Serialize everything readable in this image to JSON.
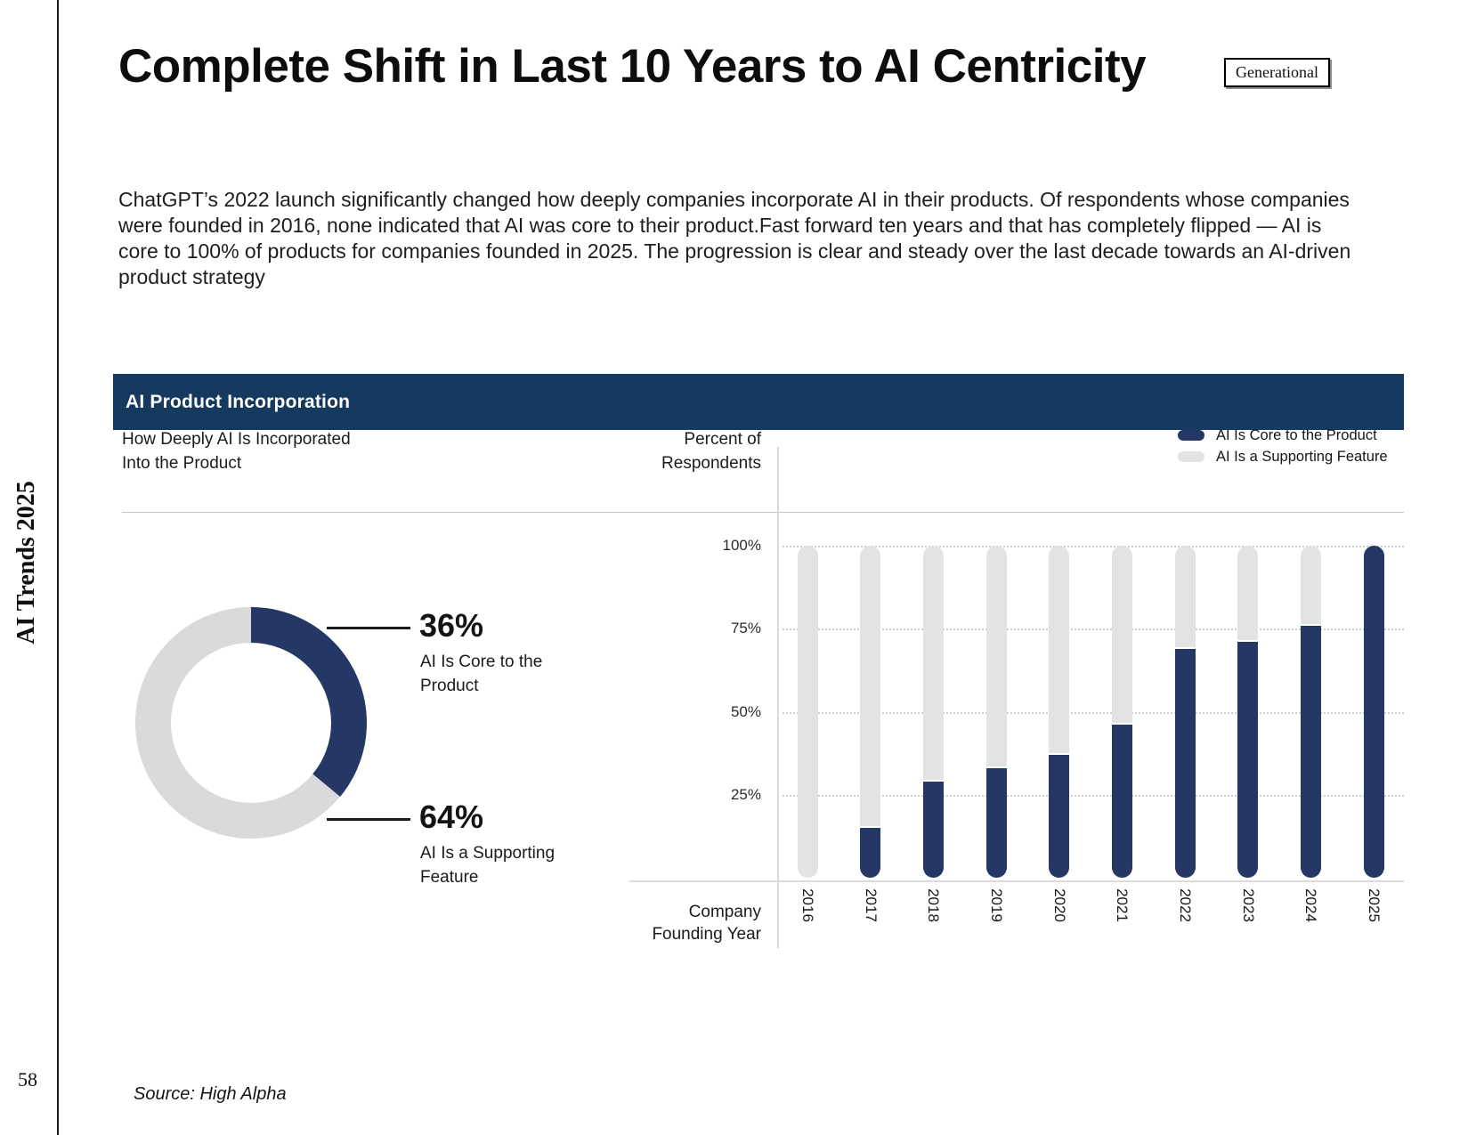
{
  "page": {
    "sidebar_title": "AI Trends 2025",
    "page_number": "58",
    "tag_label": "Generational",
    "title": "Complete Shift in Last 10 Years to AI Centricity",
    "body": "ChatGPT’s 2022 launch significantly changed how deeply companies incorporate AI in their products. Of respondents whose companies were founded in 2016, none indicated that AI was core to their product.Fast forward ten years and that has completely flipped — AI is core to 100% of products for companies founded in 2025. The progression is clear and steady over the last decade towards an AI-driven product strategy",
    "source": "Source: High Alpha"
  },
  "card": {
    "header": "AI Product Incorporation",
    "left_subtitle_line1": "How Deeply AI Is Incorporated",
    "left_subtitle_line2": "Into the Product",
    "right_axis_label_line1": "Percent of",
    "right_axis_label_line2": "Respondents",
    "x_axis_label_line1": "Company",
    "x_axis_label_line2": "Founding Year",
    "legend": [
      {
        "label": "AI Is Core to the Product",
        "color": "#253765"
      },
      {
        "label": "AI Is a Supporting Feature",
        "color": "#e3e3e3"
      }
    ]
  },
  "chart_data": [
    {
      "type": "pie",
      "donut": true,
      "title": "How Deeply AI Is Incorporated Into the Product",
      "labels": [
        "AI Is Core to the Product",
        "AI Is a Supporting Feature"
      ],
      "values": [
        36,
        64
      ],
      "colors": [
        "#253765",
        "#dadada"
      ],
      "annotations": [
        {
          "pct": "36%",
          "label_line1": "AI Is Core to the",
          "label_line2": "Product"
        },
        {
          "pct": "64%",
          "label_line1": "AI Is a Supporting",
          "label_line2": "Feature"
        }
      ]
    },
    {
      "type": "bar",
      "stacked": true,
      "title": "AI Product Incorporation",
      "xlabel": "Company Founding Year",
      "ylabel": "Percent of Respondents",
      "categories": [
        "2016",
        "2017",
        "2018",
        "2019",
        "2020",
        "2021",
        "2022",
        "2023",
        "2024",
        "2025"
      ],
      "series": [
        {
          "name": "AI Is Core to the Product",
          "color": "#253765",
          "values": [
            0,
            15,
            29,
            33,
            37,
            46,
            69,
            71,
            76,
            100
          ]
        },
        {
          "name": "AI Is a Supporting Feature",
          "color": "#e3e3e3",
          "values": [
            100,
            85,
            71,
            67,
            63,
            54,
            31,
            29,
            24,
            0
          ]
        }
      ],
      "ylim": [
        0,
        100
      ],
      "yticks": [
        {
          "label": "100%",
          "value": 100
        },
        {
          "label": "75%",
          "value": 75
        },
        {
          "label": "50%",
          "value": 50
        },
        {
          "label": "25%",
          "value": 25
        }
      ],
      "grid": "horizontal-dotted",
      "legend_position": "top-right"
    }
  ]
}
